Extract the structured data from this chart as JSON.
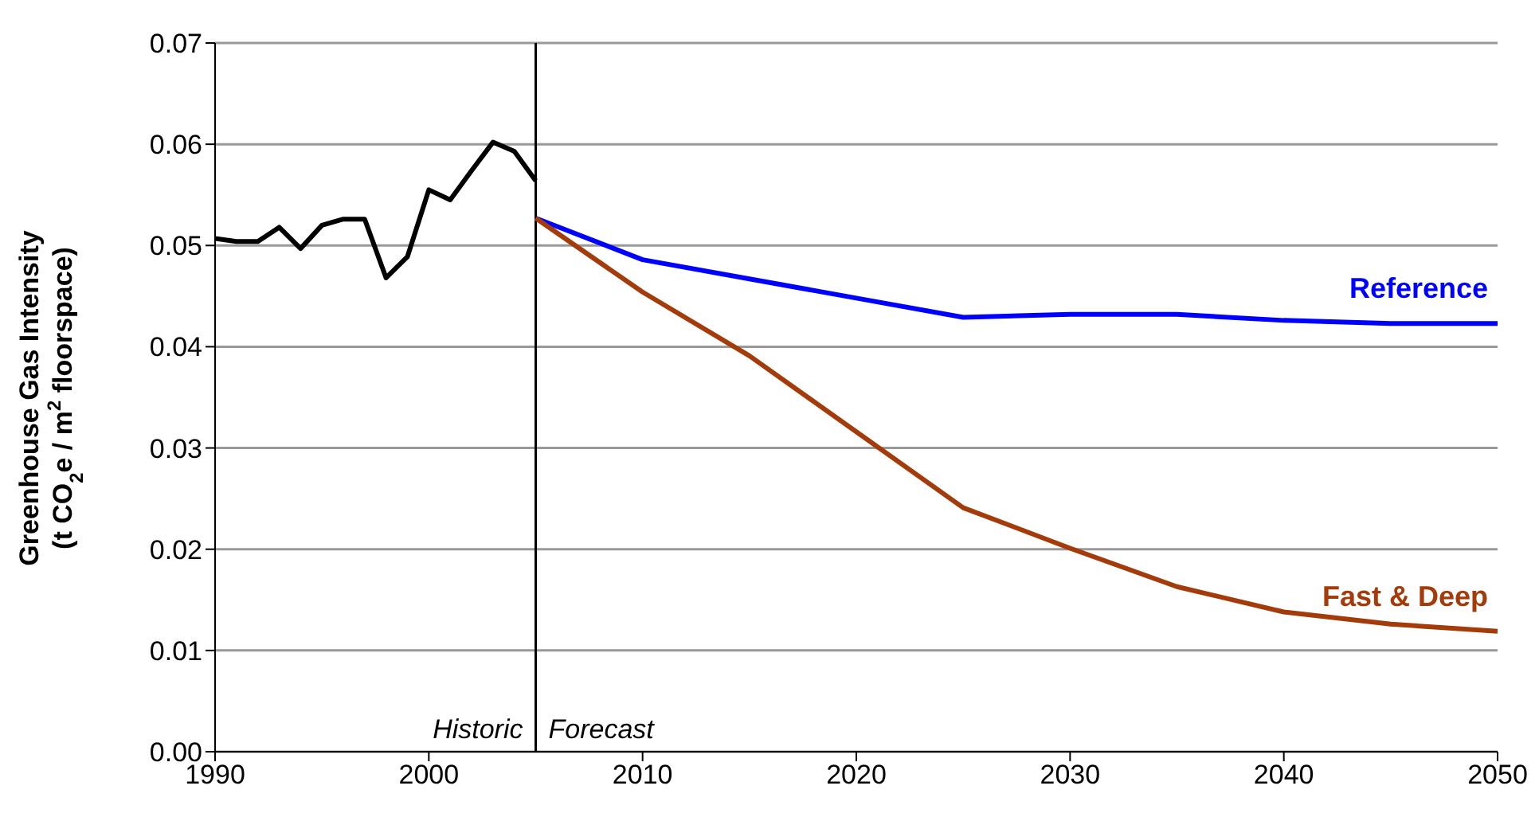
{
  "chart_data": {
    "type": "line",
    "ylabel": "Greenhouse Gas Intensity\n(t CO$_{2}$e / m$^{2}$ floorspace)",
    "xlim": [
      1990,
      2050
    ],
    "xticks": [
      1990,
      2000,
      2010,
      2020,
      2030,
      2040,
      2050
    ],
    "ylim": [
      0,
      0.07
    ],
    "yticks": [
      {
        "value": 0,
        "label": "0.00"
      },
      0.01,
      0.02,
      0.03,
      0.04,
      0.05,
      0.06,
      0.07
    ],
    "grid": "y",
    "legend": false,
    "marker": "none",
    "line_style": "solid",
    "series": [
      {
        "color": "#000000",
        "x": [
          1990,
          1991,
          1992,
          1993,
          1994,
          1995,
          1996,
          1997,
          1998,
          1999,
          2000,
          2001,
          2002,
          2003,
          2004,
          2005
        ],
        "values": [
          0.0507,
          0.0504,
          0.0504,
          0.0518,
          0.0497,
          0.052,
          0.0526,
          0.0526,
          0.0468,
          0.0489,
          0.0555,
          0.0545,
          0.0574,
          0.0602,
          0.0593,
          0.0564
        ]
      },
      {
        "name": "Reference",
        "color": "#0000ff",
        "x": [
          2005,
          2010,
          2015,
          2020,
          2025,
          2030,
          2035,
          2040,
          2045,
          2050
        ],
        "values": [
          0.0527,
          0.0486,
          0.0467,
          0.0448,
          0.0429,
          0.0432,
          0.0432,
          0.0426,
          0.0423,
          0.0423
        ]
      },
      {
        "name": "Fast & Deep",
        "color": "#a33b0a",
        "x": [
          2005,
          2010,
          2015,
          2020,
          2025,
          2030,
          2035,
          2040,
          2045,
          2050
        ],
        "values": [
          0.0527,
          0.0454,
          0.0391,
          0.0316,
          0.0241,
          0.0201,
          0.0163,
          0.0138,
          0.0126,
          0.0119
        ]
      }
    ],
    "ref_lines": [
      {
        "axis": "x",
        "value": 2005,
        "color": "#000000"
      }
    ],
    "annotations": [
      "Historic",
      "Forecast"
    ]
  }
}
